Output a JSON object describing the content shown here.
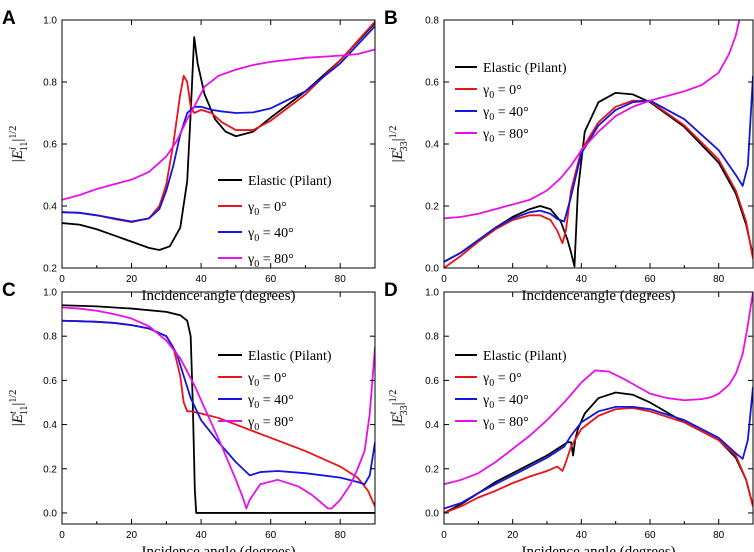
{
  "chart_data": [
    {
      "panel": "A",
      "type": "line",
      "xlabel": "Incidence angle (degrees)",
      "ylabel_main": "E",
      "ylabel_sup": "i",
      "ylabel_sub": "11",
      "ylabel_exp": "1/2",
      "xlim": [
        0,
        90
      ],
      "ylim": [
        0.2,
        1.0
      ],
      "xticks": [
        0,
        20,
        40,
        60,
        80
      ],
      "yticks": [
        0.2,
        0.4,
        0.6,
        0.8,
        1.0
      ],
      "ytick_labels": [
        "0.2",
        "0.4",
        "0.6",
        "0.8",
        "1.0"
      ],
      "legend_position": "lower-right",
      "series": [
        {
          "name": "Elastic (Pilant)",
          "color": "#000000",
          "x": [
            0,
            5,
            10,
            15,
            20,
            25,
            28,
            31,
            34,
            36,
            37,
            38,
            39,
            41,
            44,
            47,
            50,
            55,
            60,
            70,
            80,
            90
          ],
          "y": [
            0.345,
            0.34,
            0.325,
            0.305,
            0.285,
            0.265,
            0.258,
            0.27,
            0.33,
            0.48,
            0.7,
            0.945,
            0.86,
            0.76,
            0.68,
            0.64,
            0.625,
            0.64,
            0.685,
            0.77,
            0.87,
            0.99
          ]
        },
        {
          "name": "γ0 = 0°",
          "color": "#e8141a",
          "x": [
            0,
            5,
            10,
            15,
            20,
            25,
            28,
            30,
            32,
            34,
            35,
            36,
            37,
            38,
            40,
            43,
            46,
            50,
            55,
            60,
            70,
            80,
            90
          ],
          "y": [
            0.38,
            0.378,
            0.37,
            0.358,
            0.348,
            0.36,
            0.4,
            0.47,
            0.6,
            0.76,
            0.82,
            0.8,
            0.72,
            0.7,
            0.71,
            0.7,
            0.67,
            0.645,
            0.645,
            0.675,
            0.76,
            0.87,
            0.995
          ]
        },
        {
          "name": "γ0 = 40°",
          "color": "#1515e0",
          "x": [
            0,
            5,
            10,
            15,
            20,
            25,
            28,
            30,
            32,
            34,
            36,
            38,
            40,
            43,
            46,
            50,
            55,
            60,
            70,
            80,
            90
          ],
          "y": [
            0.38,
            0.378,
            0.37,
            0.36,
            0.35,
            0.36,
            0.39,
            0.45,
            0.53,
            0.63,
            0.7,
            0.72,
            0.72,
            0.71,
            0.705,
            0.7,
            0.702,
            0.715,
            0.77,
            0.86,
            0.98
          ]
        },
        {
          "name": "γ0 = 80°",
          "color": "#e810e8",
          "x": [
            0,
            5,
            10,
            15,
            20,
            25,
            30,
            33,
            36,
            38,
            41,
            45,
            50,
            55,
            60,
            70,
            80,
            85,
            90
          ],
          "y": [
            0.42,
            0.435,
            0.455,
            0.47,
            0.485,
            0.51,
            0.56,
            0.61,
            0.68,
            0.72,
            0.785,
            0.82,
            0.84,
            0.855,
            0.865,
            0.878,
            0.885,
            0.89,
            0.905
          ]
        }
      ]
    },
    {
      "panel": "B",
      "type": "line",
      "xlabel": "Incidence angle (degrees)",
      "ylabel_main": "E",
      "ylabel_sup": "i",
      "ylabel_sub": "33",
      "ylabel_exp": "1/2",
      "xlim": [
        0,
        90
      ],
      "ylim": [
        0,
        0.8
      ],
      "xticks": [
        0,
        20,
        40,
        60,
        80
      ],
      "yticks": [
        0,
        0.2,
        0.4,
        0.6,
        0.8
      ],
      "ytick_labels": [
        "0.0",
        "0.2",
        "0.4",
        "0.6",
        "0.8"
      ],
      "legend_position": "top-left",
      "series": [
        {
          "name": "Elastic (Pilant)",
          "color": "#000000",
          "x": [
            0,
            5,
            10,
            15,
            20,
            25,
            28,
            31,
            34,
            36,
            37,
            38,
            39,
            41,
            45,
            50,
            55,
            60,
            70,
            80,
            85,
            88,
            90
          ],
          "y": [
            0.02,
            0.05,
            0.09,
            0.13,
            0.165,
            0.19,
            0.2,
            0.19,
            0.15,
            0.09,
            0.05,
            0.005,
            0.25,
            0.44,
            0.535,
            0.565,
            0.56,
            0.535,
            0.455,
            0.34,
            0.24,
            0.14,
            0.04
          ]
        },
        {
          "name": "γ0 = 0°",
          "color": "#e8141a",
          "x": [
            0,
            5,
            10,
            15,
            20,
            25,
            28,
            31,
            33,
            34.5,
            35.5,
            37,
            40,
            45,
            50,
            55,
            60,
            70,
            80,
            85,
            88,
            90
          ],
          "y": [
            0.0,
            0.04,
            0.085,
            0.125,
            0.155,
            0.17,
            0.17,
            0.155,
            0.12,
            0.08,
            0.12,
            0.25,
            0.38,
            0.47,
            0.52,
            0.54,
            0.538,
            0.46,
            0.35,
            0.25,
            0.15,
            0.03
          ]
        },
        {
          "name": "γ0 = 40°",
          "color": "#1515e0",
          "x": [
            0,
            5,
            10,
            15,
            20,
            25,
            28,
            31,
            33,
            35,
            37,
            40,
            45,
            50,
            55,
            60,
            70,
            80,
            85,
            87,
            88.5,
            90
          ],
          "y": [
            0.02,
            0.05,
            0.09,
            0.13,
            0.16,
            0.18,
            0.185,
            0.175,
            0.158,
            0.15,
            0.23,
            0.37,
            0.46,
            0.51,
            0.535,
            0.54,
            0.48,
            0.38,
            0.3,
            0.265,
            0.33,
            0.62
          ]
        },
        {
          "name": "γ0 = 80°",
          "color": "#e810e8",
          "x": [
            0,
            5,
            10,
            15,
            20,
            25,
            30,
            34,
            37,
            40,
            45,
            50,
            55,
            60,
            65,
            70,
            75,
            80,
            83,
            85,
            86
          ],
          "y": [
            0.16,
            0.165,
            0.175,
            0.19,
            0.205,
            0.22,
            0.25,
            0.29,
            0.33,
            0.38,
            0.44,
            0.49,
            0.52,
            0.54,
            0.555,
            0.57,
            0.59,
            0.63,
            0.69,
            0.75,
            0.8
          ]
        }
      ]
    },
    {
      "panel": "C",
      "type": "line",
      "xlabel": "Incidence angle (degrees)",
      "ylabel_main": "E",
      "ylabel_sup": "t",
      "ylabel_sub": "11",
      "ylabel_exp": "1/2",
      "xlim": [
        0,
        90
      ],
      "ylim": [
        -0.05,
        1.0
      ],
      "xticks": [
        0,
        20,
        40,
        60,
        80
      ],
      "yticks": [
        0,
        0.2,
        0.4,
        0.6,
        0.8,
        1.0
      ],
      "ytick_labels": [
        "0.0",
        "0.2",
        "0.4",
        "0.6",
        "0.8",
        "1.0"
      ],
      "legend_position": "right",
      "series": [
        {
          "name": "Elastic (Pilant)",
          "color": "#000000",
          "x": [
            0,
            10,
            20,
            30,
            34,
            36,
            37,
            37.6,
            38.2,
            38.6,
            90
          ],
          "y": [
            0.94,
            0.935,
            0.925,
            0.91,
            0.895,
            0.87,
            0.8,
            0.5,
            0.1,
            0.0,
            0.0
          ]
        },
        {
          "name": "γ0 = 0°",
          "color": "#e8141a",
          "x": [
            0,
            5,
            10,
            15,
            20,
            25,
            30,
            32,
            34,
            35,
            36,
            37,
            40,
            45,
            50,
            60,
            70,
            80,
            85,
            88,
            90
          ],
          "y": [
            0.87,
            0.868,
            0.865,
            0.86,
            0.85,
            0.835,
            0.8,
            0.75,
            0.62,
            0.5,
            0.46,
            0.46,
            0.45,
            0.43,
            0.4,
            0.34,
            0.28,
            0.21,
            0.16,
            0.1,
            0.03
          ]
        },
        {
          "name": "γ0 = 40°",
          "color": "#1515e0",
          "x": [
            0,
            5,
            10,
            15,
            20,
            25,
            30,
            33,
            35,
            37,
            40,
            45,
            50,
            54,
            57,
            62,
            70,
            80,
            85,
            87,
            88.5,
            90
          ],
          "y": [
            0.87,
            0.868,
            0.865,
            0.86,
            0.85,
            0.835,
            0.8,
            0.72,
            0.62,
            0.52,
            0.42,
            0.32,
            0.23,
            0.17,
            0.185,
            0.19,
            0.18,
            0.16,
            0.14,
            0.13,
            0.17,
            0.32
          ]
        },
        {
          "name": "γ0 = 80°",
          "color": "#e810e8",
          "x": [
            0,
            5,
            10,
            15,
            20,
            25,
            30,
            34,
            38,
            42,
            46,
            50,
            52,
            53,
            54,
            57,
            62,
            68,
            72,
            75,
            76.5,
            77.5,
            80,
            83,
            85,
            87,
            88.5,
            90
          ],
          "y": [
            0.93,
            0.925,
            0.915,
            0.9,
            0.88,
            0.845,
            0.78,
            0.7,
            0.58,
            0.44,
            0.3,
            0.15,
            0.07,
            0.02,
            0.06,
            0.13,
            0.15,
            0.12,
            0.08,
            0.04,
            0.02,
            0.02,
            0.06,
            0.13,
            0.2,
            0.28,
            0.45,
            0.75
          ]
        }
      ]
    },
    {
      "panel": "D",
      "type": "line",
      "xlabel": "Incidence angle (degrees)",
      "ylabel_main": "E",
      "ylabel_sup": "t",
      "ylabel_sub": "33",
      "ylabel_exp": "1/2",
      "xlim": [
        0,
        90
      ],
      "ylim": [
        -0.05,
        1.0
      ],
      "xticks": [
        0,
        20,
        40,
        60,
        80
      ],
      "yticks": [
        0,
        0.2,
        0.4,
        0.6,
        0.8,
        1.0
      ],
      "ytick_labels": [
        "0.0",
        "0.2",
        "0.4",
        "0.6",
        "0.8",
        "1.0"
      ],
      "legend_position": "top-left",
      "series": [
        {
          "name": "Elastic (Pilant)",
          "color": "#000000",
          "x": [
            0,
            5,
            10,
            15,
            20,
            25,
            30,
            34,
            36,
            37,
            37.6,
            38.2,
            39,
            41,
            45,
            50,
            55,
            60,
            70,
            80,
            85,
            88,
            90
          ],
          "y": [
            0.0,
            0.04,
            0.09,
            0.14,
            0.18,
            0.22,
            0.26,
            0.3,
            0.32,
            0.32,
            0.26,
            0.33,
            0.38,
            0.45,
            0.52,
            0.545,
            0.535,
            0.5,
            0.41,
            0.33,
            0.25,
            0.15,
            0.03
          ]
        },
        {
          "name": "γ0 = 0°",
          "color": "#e8141a",
          "x": [
            0,
            5,
            10,
            15,
            20,
            25,
            30,
            33,
            34.5,
            35.5,
            37,
            40,
            45,
            50,
            55,
            60,
            70,
            80,
            85,
            88,
            90
          ],
          "y": [
            0.0,
            0.03,
            0.07,
            0.1,
            0.135,
            0.165,
            0.19,
            0.21,
            0.19,
            0.23,
            0.3,
            0.38,
            0.44,
            0.47,
            0.475,
            0.46,
            0.41,
            0.33,
            0.26,
            0.15,
            0.03
          ]
        },
        {
          "name": "γ0 = 40°",
          "color": "#1515e0",
          "x": [
            0,
            5,
            10,
            15,
            20,
            25,
            30,
            33,
            35,
            37,
            40,
            45,
            50,
            55,
            60,
            70,
            80,
            85,
            87,
            88.5,
            90
          ],
          "y": [
            0.02,
            0.045,
            0.09,
            0.13,
            0.17,
            0.21,
            0.25,
            0.28,
            0.3,
            0.35,
            0.41,
            0.46,
            0.48,
            0.48,
            0.47,
            0.42,
            0.34,
            0.27,
            0.245,
            0.33,
            0.57
          ]
        },
        {
          "name": "γ0 = 80°",
          "color": "#e810e8",
          "x": [
            0,
            5,
            10,
            15,
            20,
            25,
            30,
            35,
            40,
            44,
            48,
            52,
            56,
            60,
            65,
            70,
            75,
            78,
            80,
            83,
            85,
            87,
            88.5,
            90
          ],
          "y": [
            0.13,
            0.15,
            0.18,
            0.23,
            0.29,
            0.35,
            0.42,
            0.5,
            0.59,
            0.645,
            0.64,
            0.61,
            0.575,
            0.54,
            0.52,
            0.51,
            0.515,
            0.525,
            0.54,
            0.58,
            0.63,
            0.72,
            0.85,
            1.0
          ]
        }
      ]
    }
  ]
}
